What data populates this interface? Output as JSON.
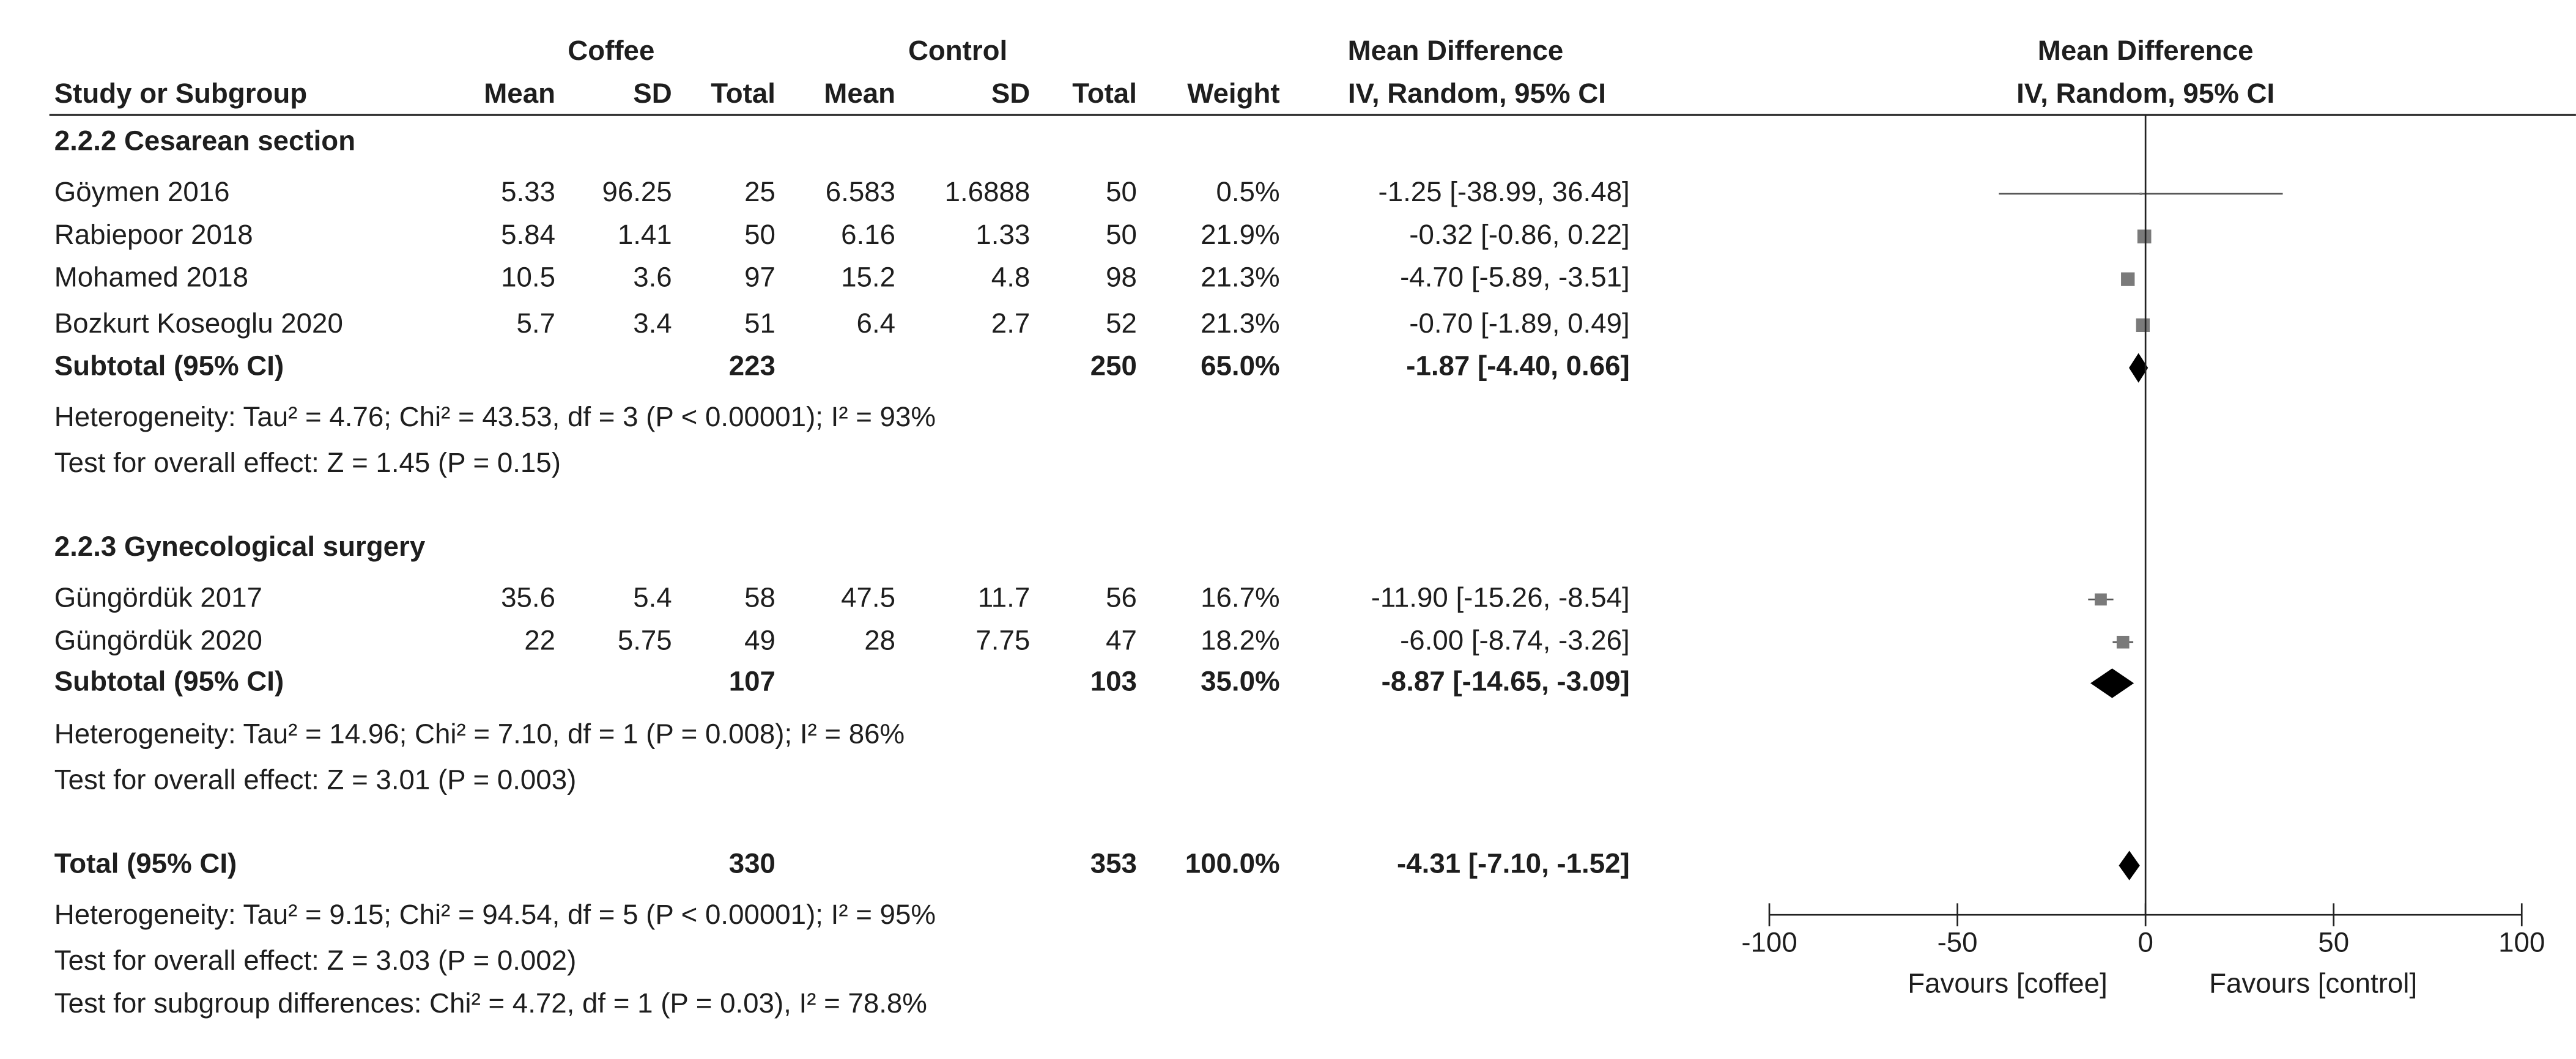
{
  "chart_data": {
    "type": "forest",
    "header": {
      "group1": "Coffee",
      "group2": "Control",
      "md_title": "Mean Difference",
      "md_method": "IV, Random, 95% CI",
      "plot_title": "Mean Difference",
      "plot_method": "IV, Random, 95% CI"
    },
    "columns": [
      "Study or Subgroup",
      "Mean",
      "SD",
      "Total",
      "Mean",
      "SD",
      "Total",
      "Weight"
    ],
    "subgroups": [
      {
        "title": "2.2.2 Cesarean section",
        "studies": [
          {
            "name": "Göymen 2016",
            "cells": [
              "5.33",
              "96.25",
              "25",
              "6.583",
              "1.6888",
              "50",
              "0.5%"
            ],
            "weight": 0.5,
            "md": -1.25,
            "ci": [
              -38.99,
              36.48
            ],
            "ci_label": "-1.25 [-38.99, 36.48]"
          },
          {
            "name": "Rabiepoor 2018",
            "cells": [
              "5.84",
              "1.41",
              "50",
              "6.16",
              "1.33",
              "50",
              "21.9%"
            ],
            "weight": 21.9,
            "md": -0.32,
            "ci": [
              -0.86,
              0.22
            ],
            "ci_label": "-0.32 [-0.86, 0.22]"
          },
          {
            "name": "Mohamed 2018",
            "cells": [
              "10.5",
              "3.6",
              "97",
              "15.2",
              "4.8",
              "98",
              "21.3%"
            ],
            "weight": 21.3,
            "md": -4.7,
            "ci": [
              -5.89,
              -3.51
            ],
            "ci_label": "-4.70 [-5.89, -3.51]"
          },
          {
            "name": "Bozkurt Koseoglu 2020",
            "cells": [
              "5.7",
              "3.4",
              "51",
              "6.4",
              "2.7",
              "52",
              "21.3%"
            ],
            "weight": 21.3,
            "md": -0.7,
            "ci": [
              -1.89,
              0.49
            ],
            "ci_label": "-0.70 [-1.89, 0.49]"
          }
        ],
        "subtotal": {
          "name": "Subtotal (95% CI)",
          "total1": "223",
          "total2": "250",
          "weight_label": "65.0%",
          "md": -1.87,
          "ci": [
            -4.4,
            0.66
          ],
          "ci_label": "-1.87 [-4.40, 0.66]"
        },
        "notes": [
          "Heterogeneity: Tau² = 4.76; Chi² = 43.53, df = 3 (P < 0.00001); I² = 93%",
          "Test for overall effect: Z = 1.45 (P = 0.15)"
        ]
      },
      {
        "title": "2.2.3 Gynecological surgery",
        "studies": [
          {
            "name": "Güngördük 2017",
            "cells": [
              "35.6",
              "5.4",
              "58",
              "47.5",
              "11.7",
              "56",
              "16.7%"
            ],
            "weight": 16.7,
            "md": -11.9,
            "ci": [
              -15.26,
              -8.54
            ],
            "ci_label": "-11.90 [-15.26, -8.54]"
          },
          {
            "name": "Güngördük 2020",
            "cells": [
              "22",
              "5.75",
              "49",
              "28",
              "7.75",
              "47",
              "18.2%"
            ],
            "weight": 18.2,
            "md": -6.0,
            "ci": [
              -8.74,
              -3.26
            ],
            "ci_label": "-6.00 [-8.74, -3.26]"
          }
        ],
        "subtotal": {
          "name": "Subtotal (95% CI)",
          "total1": "107",
          "total2": "103",
          "weight_label": "35.0%",
          "md": -8.87,
          "ci": [
            -14.65,
            -3.09
          ],
          "ci_label": "-8.87 [-14.65, -3.09]"
        },
        "notes": [
          "Heterogeneity: Tau² = 14.96; Chi² = 7.10, df = 1 (P = 0.008); I² = 86%",
          "Test for overall effect: Z = 3.01 (P = 0.003)"
        ]
      }
    ],
    "total": {
      "name": "Total (95% CI)",
      "total1": "330",
      "total2": "353",
      "weight_label": "100.0%",
      "md": -4.31,
      "ci": [
        -7.1,
        -1.52
      ],
      "ci_label": "-4.31 [-7.10, -1.52]"
    },
    "notes": [
      "Heterogeneity: Tau² = 9.15; Chi² = 94.54, df = 5 (P < 0.00001); I² = 95%",
      "Test for overall effect: Z = 3.03 (P = 0.002)",
      "Test for subgroup differences: Chi² = 4.72, df = 1 (P = 0.03), I² = 78.8%"
    ],
    "xlim": [
      -100,
      100
    ],
    "xticks": [
      -100,
      -50,
      0,
      50,
      100
    ],
    "favours": [
      "Favours [coffee]",
      "Favours [control]"
    ]
  }
}
